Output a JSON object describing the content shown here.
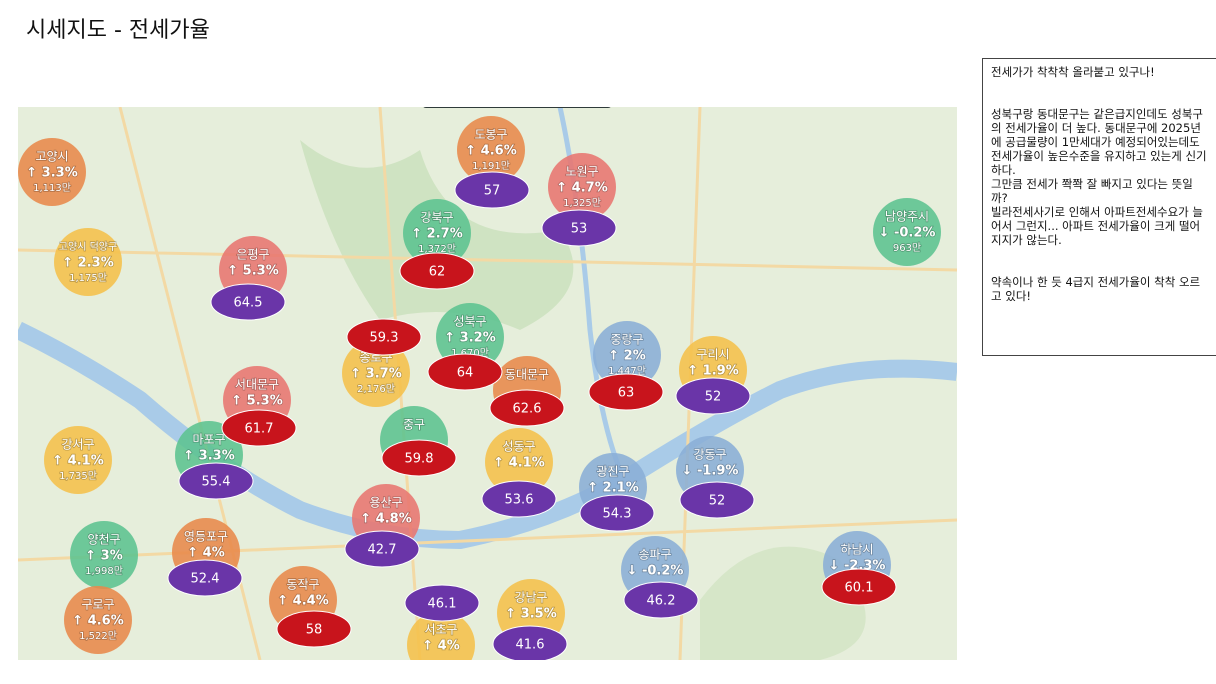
{
  "header": {
    "title": "시세지도 - 전세가율"
  },
  "note": {
    "paragraphs": [
      "전세가가 착착착 올라붙고 있구나!",
      "성북구랑 동대문구는 같은급지인데도 성북구의 전세가율이 더 높다. 동대문구에 2025년에 공급물량이 1만세대가 예정되어있는데도 전세가율이 높은수준을 유지하고 있는게 신기하다.",
      "그만큼 전세가 쫙쫙 잘 빠지고 있다는 뜻일까?",
      "빌라전세사기로 인해서 아파트전세수요가 늘어서 그런지... 아파트 전세가율이 크게 떨어지지가 않는다.",
      "약속이나 한 듯 4급지 전세가율이 착착 오르고 있다!"
    ]
  },
  "map": {
    "districts": [
      {
        "name": "고양시",
        "change": "↑ 3.3%",
        "price": "1,113만",
        "circle": "#e8894a"
      },
      {
        "name": "도봉구",
        "change": "↑ 4.6%",
        "price": "1,191만",
        "ratio": "57",
        "circle": "#e8894a",
        "oval": "#6a35a8"
      },
      {
        "name": "노원구",
        "change": "↑ 4.7%",
        "price": "1,325만",
        "ratio": "53",
        "circle": "#e8756f",
        "oval": "#6a35a8"
      },
      {
        "name": "고양시 덕양구",
        "change": "↑ 2.3%",
        "price": "1,175만",
        "circle": "#f5c04a"
      },
      {
        "name": "강북구",
        "change": "↑ 2.7%",
        "price": "1,372만",
        "ratio": "62",
        "circle": "#5cc38f",
        "oval": "#c8141c"
      },
      {
        "name": "은평구",
        "change": "↑ 5.3%",
        "ratio": "64.5",
        "circle": "#e8756f",
        "oval": "#6a35a8"
      },
      {
        "name": "남양주시",
        "change": "↓ -0.2%",
        "price": "963만",
        "circle": "#5cc38f"
      },
      {
        "name": "성북구",
        "change": "↑ 3.2%",
        "price": "1,670만",
        "ratio": "64",
        "circle": "#5cc38f",
        "oval": "#c8141c"
      },
      {
        "name": "종로구",
        "change": "↑ 3.7%",
        "price": "2,176만",
        "ratio": "59.3",
        "circle": "#f5c04a",
        "oval": "#c8141c"
      },
      {
        "name": "중랑구",
        "change": "↑ 2%",
        "price": "1,447만",
        "ratio": "63",
        "circle": "#8aaed6",
        "oval": "#c8141c"
      },
      {
        "name": "구리시",
        "change": "↑ 1.9%",
        "ratio": "52",
        "circle": "#f5c04a",
        "oval": "#6a35a8"
      },
      {
        "name": "동대문구",
        "ratio": "62.6",
        "circle": "#e8894a",
        "oval": "#c8141c"
      },
      {
        "name": "서대문구",
        "change": "↑ 5.3%",
        "ratio": "61.7",
        "circle": "#e8756f",
        "oval": "#c8141c"
      },
      {
        "name": "마포구",
        "change": "↑ 3.3%",
        "ratio": "55.4",
        "circle": "#5cc38f",
        "oval": "#6a35a8"
      },
      {
        "name": "강서구",
        "change": "↑ 4.1%",
        "price": "1,735만",
        "circle": "#f5c04a"
      },
      {
        "name": "중구",
        "ratio": "59.8",
        "circle": "#5cc38f",
        "oval": "#c8141c"
      },
      {
        "name": "성동구",
        "change": "↑ 4.1%",
        "ratio": "53.6",
        "circle": "#f5c04a",
        "oval": "#6a35a8"
      },
      {
        "name": "광진구",
        "change": "↑ 2.1%",
        "ratio": "54.3",
        "circle": "#8aaed6",
        "oval": "#6a35a8"
      },
      {
        "name": "강동구",
        "change": "↓ -1.9%",
        "ratio": "52",
        "circle": "#8aaed6",
        "oval": "#6a35a8"
      },
      {
        "name": "용산구",
        "change": "↑ 4.8%",
        "ratio": "42.7",
        "circle": "#e8756f",
        "oval": "#6a35a8"
      },
      {
        "name": "영등포구",
        "change": "↑ 4%",
        "ratio": "52.4",
        "circle": "#e8894a",
        "oval": "#6a35a8"
      },
      {
        "name": "양천구",
        "change": "↑ 3%",
        "price": "1,998만",
        "circle": "#5cc38f"
      },
      {
        "name": "하남시",
        "change": "↓ -2.3%",
        "ratio": "60.1",
        "circle": "#8aaed6",
        "oval": "#c8141c"
      },
      {
        "name": "송파구",
        "change": "↓ -0.2%",
        "ratio": "46.2",
        "circle": "#8aaed6",
        "oval": "#6a35a8"
      },
      {
        "name": "동작구",
        "change": "↑ 4.4%",
        "ratio": "58",
        "circle": "#e8894a",
        "oval": "#c8141c"
      },
      {
        "name": "구로구",
        "change": "↑ 4.6%",
        "price": "1,522만",
        "circle": "#e8894a"
      },
      {
        "name": "서초구",
        "change": "↑ 4%",
        "ratio": "46.1",
        "circle": "#f5c04a",
        "oval": "#6a35a8"
      },
      {
        "name": "강남구",
        "change": "↑ 3.5%",
        "ratio": "41.6",
        "circle": "#f5c04a",
        "oval": "#6a35a8"
      }
    ]
  }
}
